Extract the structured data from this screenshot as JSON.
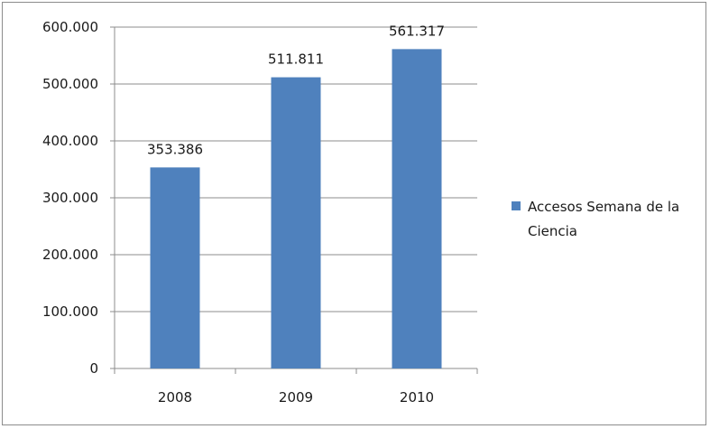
{
  "chart_data": {
    "type": "bar",
    "categories": [
      "2008",
      "2009",
      "2010"
    ],
    "series": [
      {
        "name": "Accesos Semana de la Ciencia",
        "values": [
          353386,
          511811,
          561317
        ],
        "data_labels": [
          "353.386",
          "511.811",
          "561.317"
        ]
      }
    ],
    "y_ticks": [
      0,
      100000,
      200000,
      300000,
      400000,
      500000,
      600000
    ],
    "y_tick_labels": [
      "0",
      "100.000",
      "200.000",
      "300.000",
      "400.000",
      "500.000",
      "600.000"
    ],
    "ylim": [
      0,
      600000
    ],
    "title": "",
    "xlabel": "",
    "ylabel": "",
    "grid": "horizontal",
    "legend_position": "right",
    "colors": {
      "bar": "#4f81bd",
      "grid": "#8c8c8c",
      "axis": "#8c8c8c",
      "text": "#1a1a1a"
    }
  }
}
